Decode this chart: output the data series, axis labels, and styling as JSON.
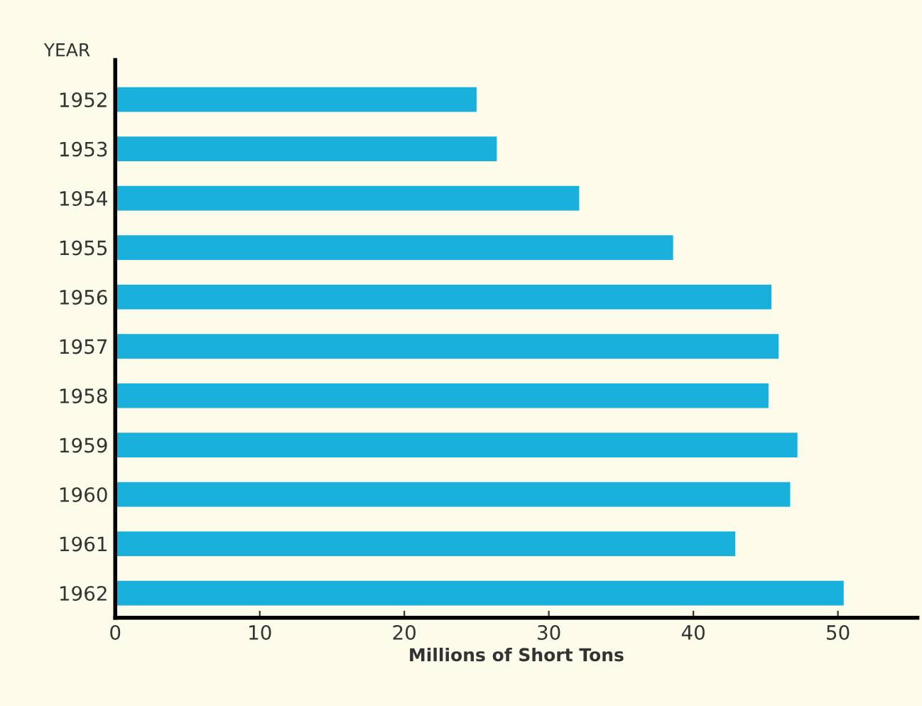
{
  "chart_data": {
    "type": "bar",
    "orientation": "horizontal",
    "ylabel": "YEAR",
    "xlabel": "Millions of Short Tons",
    "categories": [
      "1952",
      "1953",
      "1954",
      "1955",
      "1956",
      "1957",
      "1958",
      "1959",
      "1960",
      "1961",
      "1962"
    ],
    "values": [
      25.0,
      26.4,
      32.1,
      38.6,
      45.4,
      45.9,
      45.2,
      47.2,
      46.7,
      42.9,
      50.4
    ],
    "color": "#1ab0dc",
    "xlim": [
      0,
      55.5
    ],
    "xticks": [
      0,
      10,
      20,
      30,
      40,
      50
    ],
    "grid": false
  }
}
